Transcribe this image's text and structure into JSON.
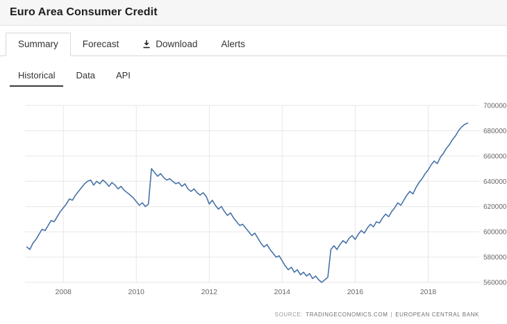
{
  "header": {
    "title": "Euro Area Consumer Credit"
  },
  "tabs": {
    "summary": "Summary",
    "forecast": "Forecast",
    "download": "Download",
    "alerts": "Alerts"
  },
  "icons": {
    "download": "download-icon"
  },
  "subtabs": {
    "historical": "Historical",
    "data": "Data",
    "api": "API"
  },
  "footer": {
    "source_label": "SOURCE:",
    "provider": "TRADINGECONOMICS.COM",
    "separator": "|",
    "organization": "EUROPEAN CENTRAL BANK"
  },
  "chart_data": {
    "type": "line",
    "title": "Euro Area Consumer Credit",
    "xlabel": "",
    "ylabel": "",
    "legend_position": "none",
    "grid": true,
    "ylim": [
      560000,
      700000
    ],
    "yticks": [
      560000,
      580000,
      600000,
      620000,
      640000,
      660000,
      680000,
      700000
    ],
    "xticks": [
      2008,
      2010,
      2012,
      2014,
      2016,
      2018
    ],
    "xlim": [
      2006.95,
      2019.4
    ],
    "line_color": "#4572a7",
    "grid_color": "#e6e6e6",
    "axis_text_color": "#666666",
    "series": [
      {
        "name": "Euro Area Consumer Credit",
        "start_year": 2007,
        "start_month": 1,
        "interval_months": 1,
        "values": [
          588000,
          586000,
          591000,
          594000,
          598000,
          602000,
          601000,
          605000,
          609000,
          608000,
          612000,
          616000,
          619000,
          622000,
          626000,
          625000,
          629000,
          632000,
          635000,
          638000,
          640000,
          641000,
          637000,
          640000,
          638000,
          641000,
          639000,
          636000,
          639000,
          637000,
          634000,
          636000,
          633000,
          631000,
          629000,
          627000,
          624000,
          621000,
          623000,
          620000,
          622000,
          650000,
          647000,
          644000,
          646000,
          643000,
          641000,
          642000,
          640000,
          638000,
          639000,
          636000,
          638000,
          634000,
          632000,
          634000,
          631000,
          629000,
          631000,
          628000,
          622000,
          625000,
          621000,
          618000,
          620000,
          616000,
          613000,
          615000,
          611000,
          608000,
          605000,
          606000,
          603000,
          600000,
          597000,
          599000,
          595000,
          591000,
          588000,
          590000,
          586000,
          583000,
          580000,
          581000,
          577000,
          573000,
          570000,
          572000,
          568000,
          570000,
          566000,
          568000,
          565000,
          567000,
          563000,
          565000,
          562000,
          560000,
          562000,
          564000,
          586000,
          589000,
          586000,
          590000,
          593000,
          591000,
          595000,
          597000,
          594000,
          598000,
          601000,
          599000,
          603000,
          606000,
          604000,
          608000,
          607000,
          611000,
          614000,
          612000,
          616000,
          619000,
          623000,
          621000,
          625000,
          629000,
          632000,
          630000,
          635000,
          639000,
          642000,
          646000,
          649000,
          653000,
          656000,
          654000,
          659000,
          662000,
          666000,
          669000,
          673000,
          676000,
          680000,
          683000,
          685000,
          686000
        ]
      }
    ]
  }
}
